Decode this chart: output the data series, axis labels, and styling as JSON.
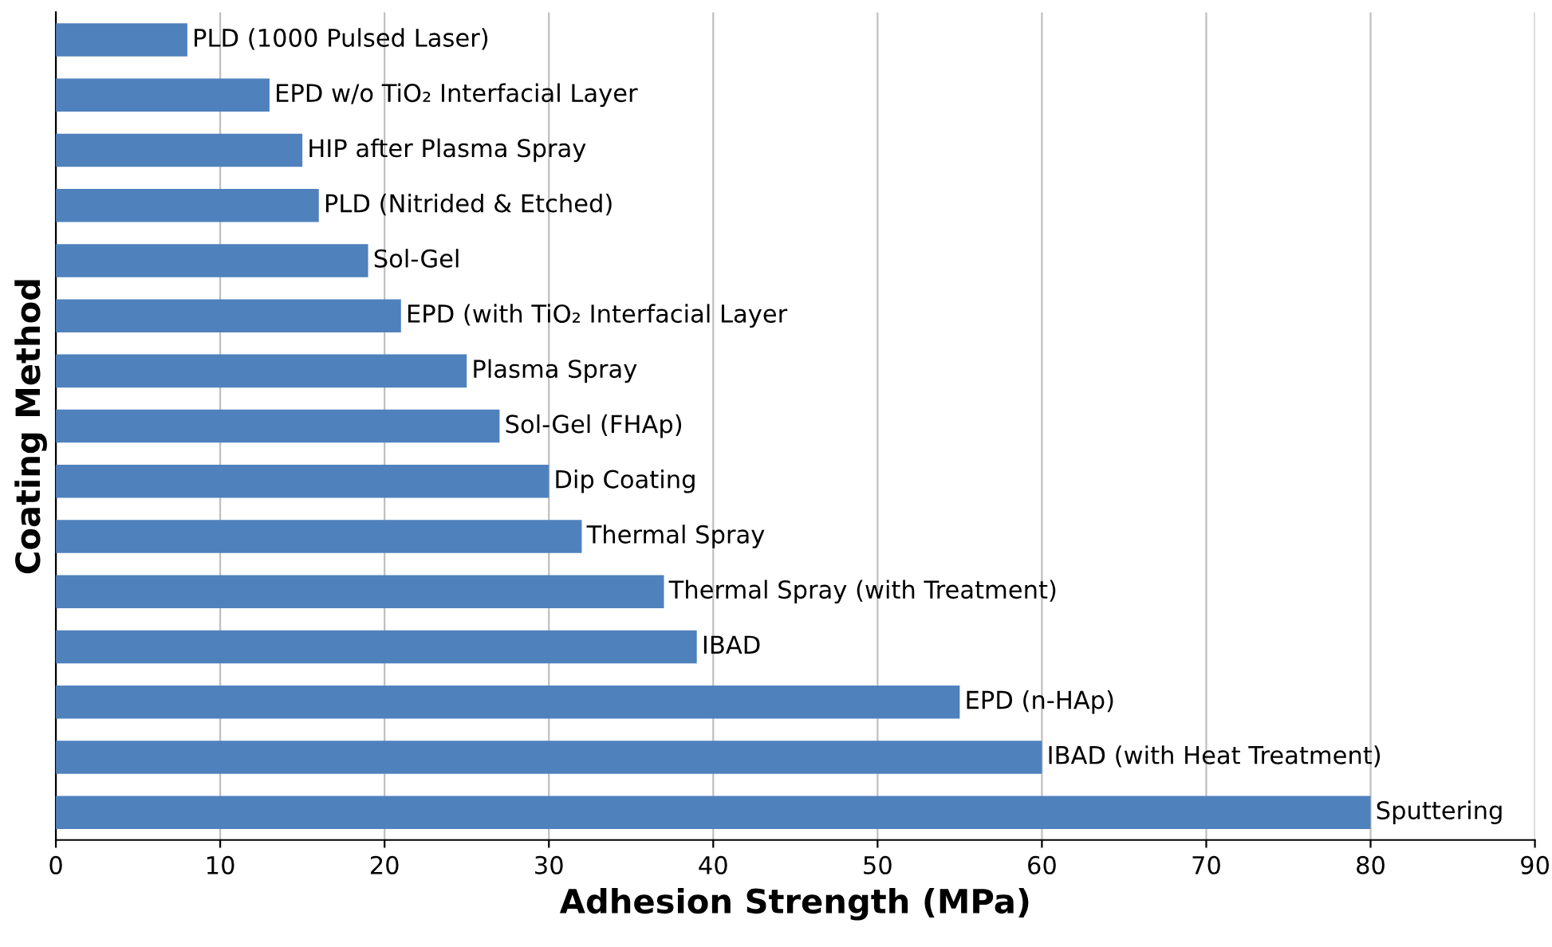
{
  "chart_data": {
    "type": "bar",
    "orientation": "horizontal",
    "xlabel": "Adhesion Strength (MPa)",
    "ylabel": "Coating Method",
    "categories": [
      "PLD (1000 Pulsed Laser)",
      "EPD w/o TiO₂ Interfacial Layer",
      "HIP after Plasma Spray",
      "PLD (Nitrided & Etched)",
      "Sol-Gel",
      "EPD (with TiO₂ Interfacial Layer",
      "Plasma Spray",
      "Sol-Gel (FHAp)",
      "Dip Coating",
      "Thermal Spray",
      "Thermal Spray (with Treatment)",
      "IBAD",
      "EPD (n-HAp)",
      "IBAD (with Heat Treatment)",
      "Sputtering"
    ],
    "values": [
      8,
      13,
      15,
      16,
      19,
      21,
      25,
      27,
      30,
      32,
      37,
      39,
      55,
      60,
      80
    ],
    "color": "#4f81bd",
    "xlim": [
      0,
      90
    ],
    "xticks": [
      0,
      10,
      20,
      30,
      40,
      50,
      60,
      70,
      80,
      90
    ],
    "grid": "x",
    "tick_labels": "x"
  }
}
